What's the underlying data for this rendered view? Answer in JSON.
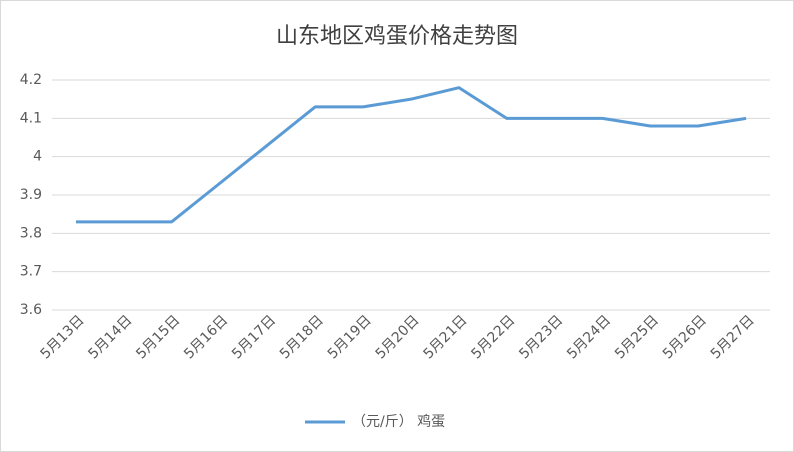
{
  "chart_data": {
    "type": "line",
    "title": "山东地区鸡蛋价格走势图",
    "categories": [
      "5月13日",
      "5月14日",
      "5月15日",
      "5月16日",
      "5月17日",
      "5月18日",
      "5月19日",
      "5月20日",
      "5月21日",
      "5月22日",
      "5月23日",
      "5月24日",
      "5月25日",
      "5月26日",
      "5月27日"
    ],
    "series": [
      {
        "name": "（元/斤） 鸡蛋",
        "color": "#5b9bd5",
        "values": [
          3.83,
          3.83,
          3.83,
          3.93,
          4.03,
          4.13,
          4.13,
          4.15,
          4.18,
          4.1,
          4.1,
          4.1,
          4.08,
          4.08,
          4.1
        ]
      }
    ],
    "ylim": [
      3.6,
      4.2
    ],
    "yticks": [
      3.6,
      3.7,
      3.8,
      3.9,
      4,
      4.1,
      4.2
    ],
    "grid": true,
    "legend": "bottom"
  }
}
